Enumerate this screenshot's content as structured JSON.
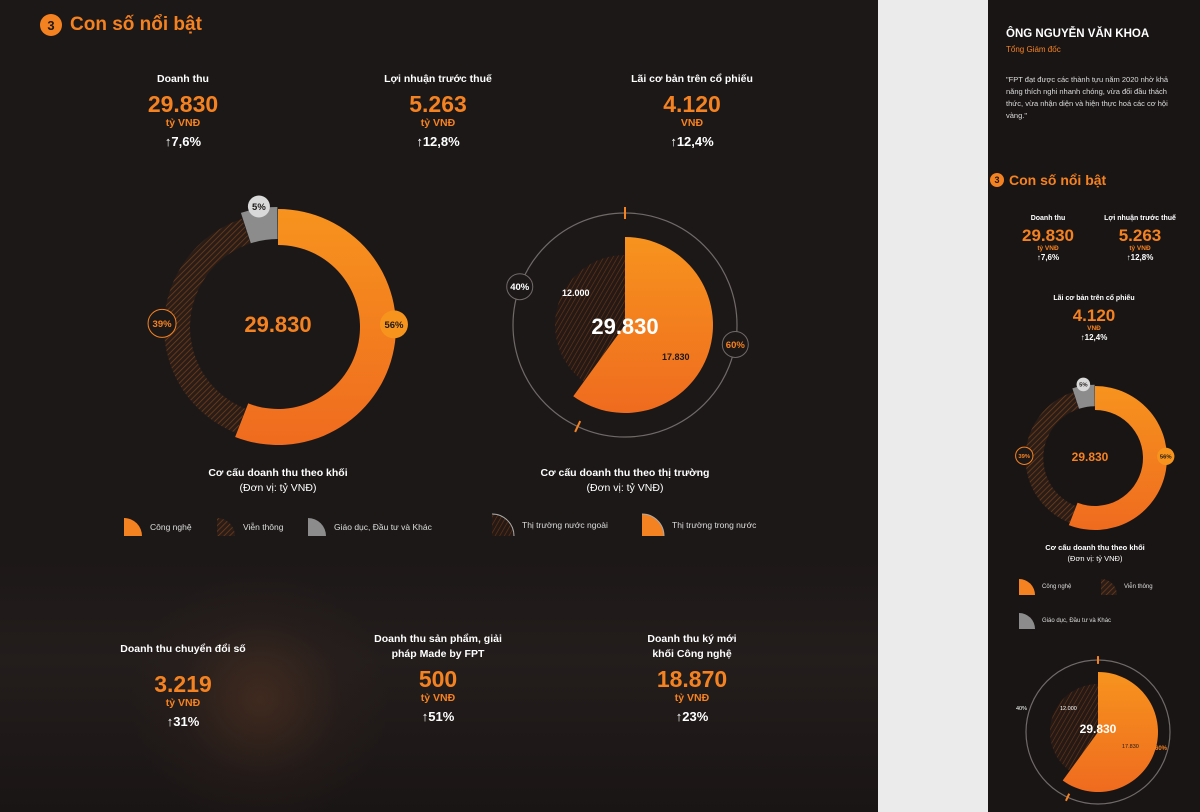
{
  "section": {
    "number": "3",
    "title": "Con số nổi bật"
  },
  "top_stats": [
    {
      "label": "Doanh thu",
      "value": "29.830",
      "unit": "tỷ VNĐ",
      "change": "7,6%"
    },
    {
      "label": "Lợi nhuận trước thuế",
      "value": "5.263",
      "unit": "tỷ VNĐ",
      "change": "12,8%"
    },
    {
      "label": "Lãi cơ bản trên cổ phiếu",
      "value": "4.120",
      "unit": "VNĐ",
      "change": "12,4%"
    }
  ],
  "donut1": {
    "center": "29.830",
    "caption_title": "Cơ cấu doanh thu theo khối",
    "caption_unit": "(Đơn vị: tỷ VNĐ)",
    "slices": [
      {
        "name": "Công nghệ",
        "pct": 56,
        "label": "56%",
        "color": "#f58220"
      },
      {
        "name": "Viễn thông",
        "pct": 39,
        "label": "39%",
        "color": "#8a4a1c"
      },
      {
        "name": "Giáo dục, Đầu tư và Khác",
        "pct": 5,
        "label": "5%",
        "color": "#9a9a9a"
      }
    ]
  },
  "donut2": {
    "center": "29.830",
    "caption_title": "Cơ cấu doanh thu theo thị trường",
    "caption_unit": "(Đơn vị: tỷ VNĐ)",
    "slices": [
      {
        "name": "Thị trường nước ngoài",
        "pct": 40,
        "label": "40%",
        "value": "12.000",
        "color": "#5a2e14"
      },
      {
        "name": "Thị trường trong nước",
        "pct": 60,
        "label": "60%",
        "value": "17.830",
        "color": "#f58220"
      }
    ]
  },
  "bottom_stats": [
    {
      "label": "Doanh thu chuyển đổi số",
      "value": "3.219",
      "unit": "tỷ VNĐ",
      "change": "31%"
    },
    {
      "label": "Doanh thu sản phẩm, giải pháp Made by FPT",
      "value": "500",
      "unit": "tỷ VNĐ",
      "change": "51%"
    },
    {
      "label": "Doanh thu ký mới khối Công nghệ",
      "value": "18.870",
      "unit": "tỷ VNĐ",
      "change": "23%"
    }
  ],
  "side": {
    "name": "ÔNG NGUYỄN VĂN KHOA",
    "role": "Tổng Giám đốc",
    "quote": "\"FPT đạt được các thành tựu năm 2020 nhờ khả năng thích nghi nhanh chóng, vừa đối đầu thách thức, vừa nhận diện và hiện thực hoá các cơ hội vàng.\"",
    "section_title": "Con số nổi bật",
    "section_number": "3",
    "donut_center": "29.830",
    "donut_caption": "Cơ cấu doanh thu theo khối",
    "donut_unit": "(Đơn vị: tỷ VNĐ)",
    "legend": [
      "Công nghệ",
      "Viễn thông",
      "Giáo dục, Đầu tư và Khác"
    ],
    "donut2_center": "29.830",
    "donut2_left": "40%",
    "donut2_value": "12.000",
    "donut2_value2": "17.830",
    "donut2_right": "60%"
  },
  "chart_data": [
    {
      "type": "pie",
      "title": "Cơ cấu doanh thu theo khối",
      "categories": [
        "Công nghệ",
        "Viễn thông",
        "Giáo dục, Đầu tư và Khác"
      ],
      "values": [
        56,
        39,
        5
      ],
      "total": 29830
    },
    {
      "type": "pie",
      "title": "Cơ cấu doanh thu theo thị trường",
      "categories": [
        "Thị trường nước ngoài",
        "Thị trường trong nước"
      ],
      "values": [
        40,
        60
      ],
      "amounts": [
        12000,
        17830
      ],
      "total": 29830
    }
  ]
}
